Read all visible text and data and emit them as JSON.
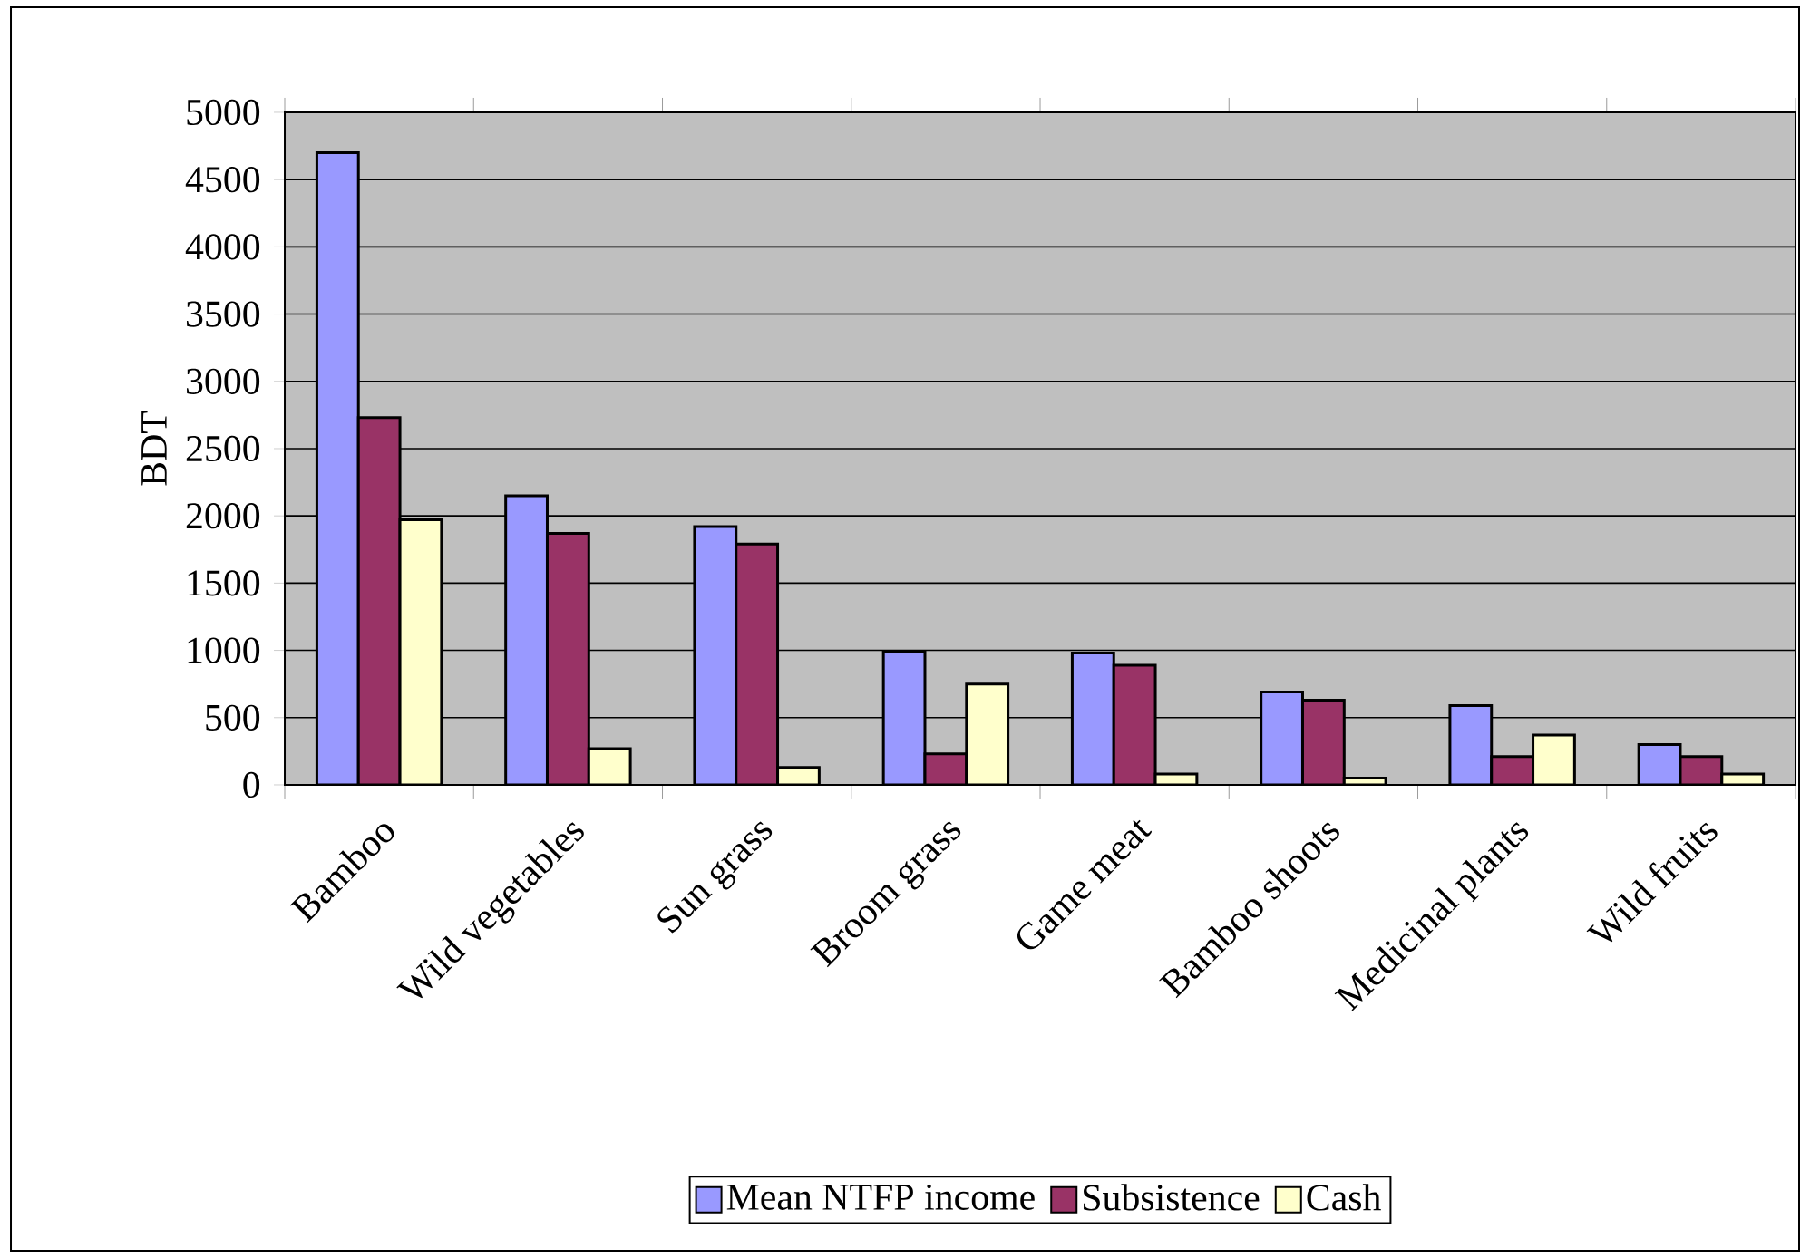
{
  "chart_data": {
    "type": "bar",
    "ylabel": "BDT",
    "categories": [
      "Bamboo",
      "Wild vegetables",
      "Sun grass",
      "Broom grass",
      "Game meat",
      "Bamboo shoots",
      "Medicinal plants",
      "Wild fruits"
    ],
    "series": [
      {
        "name": "Mean NTFP income",
        "color": "#9999ff",
        "values": [
          4700,
          2150,
          1920,
          990,
          980,
          690,
          590,
          300
        ]
      },
      {
        "name": "Subsistence",
        "color": "#993366",
        "values": [
          2730,
          1870,
          1790,
          230,
          890,
          630,
          210,
          210
        ]
      },
      {
        "name": "Cash",
        "color": "#ffffcc",
        "values": [
          1970,
          270,
          130,
          750,
          80,
          50,
          370,
          80
        ]
      }
    ],
    "ylim": [
      0,
      5000
    ],
    "yticks": [
      0,
      500,
      1000,
      1500,
      2000,
      2500,
      3000,
      3500,
      4000,
      4500,
      5000
    ],
    "grid": "y",
    "legend": "bottom"
  }
}
